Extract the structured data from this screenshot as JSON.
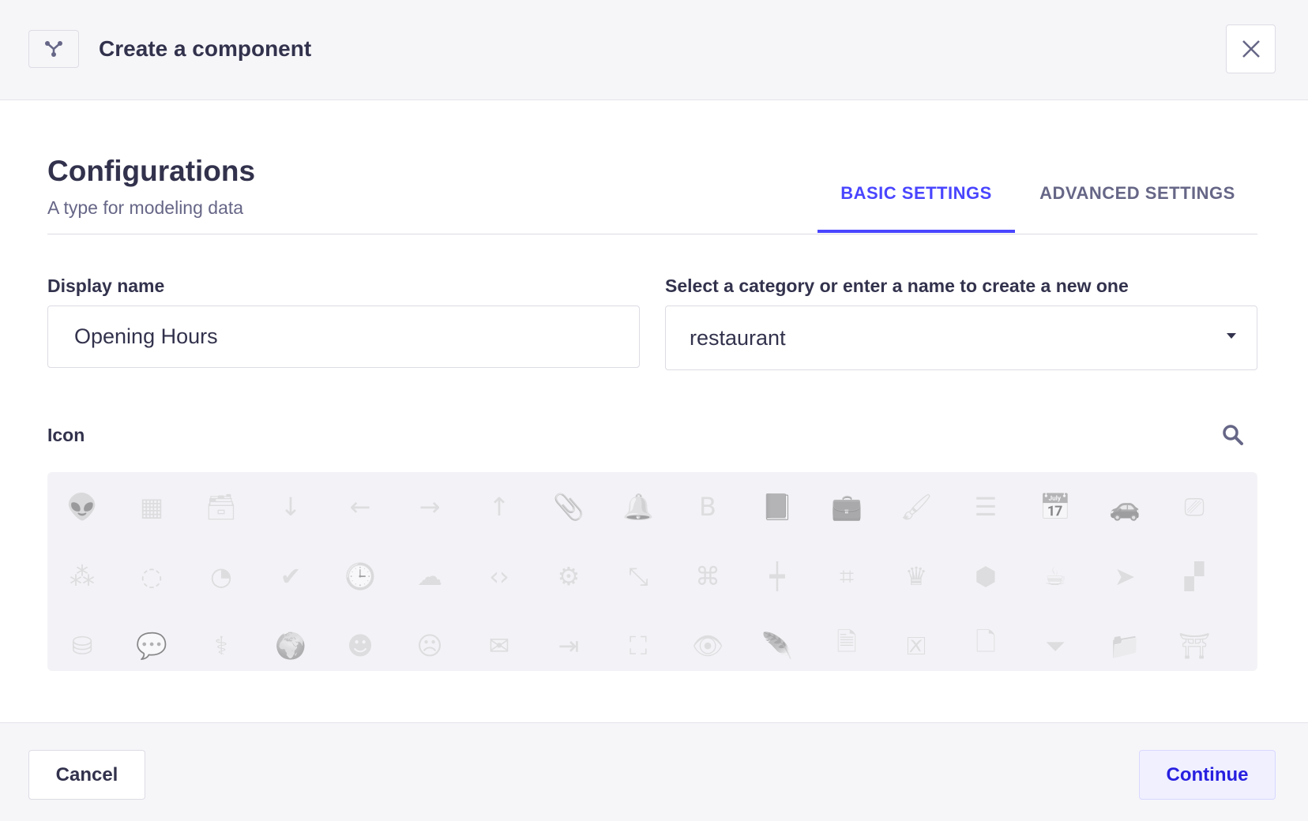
{
  "header": {
    "title": "Create a component",
    "logo_icon": "component-icon",
    "close_icon": "close-icon"
  },
  "section": {
    "title": "Configurations",
    "subtitle": "A type for modeling data"
  },
  "tabs": [
    {
      "label": "BASIC SETTINGS",
      "active": true
    },
    {
      "label": "ADVANCED SETTINGS",
      "active": false
    }
  ],
  "form": {
    "display_name": {
      "label": "Display name",
      "value": "Opening Hours"
    },
    "category": {
      "label": "Select a category or enter a name to create a new one",
      "value": "restaurant"
    },
    "icon": {
      "label": "Icon",
      "search_icon": "search-icon"
    }
  },
  "accent": "#4945ff",
  "icons": [
    {
      "name": "alien",
      "g": "👽"
    },
    {
      "name": "apps",
      "g": "▦"
    },
    {
      "name": "archive",
      "g": "🗃"
    },
    {
      "name": "arrow-down",
      "g": "↓"
    },
    {
      "name": "arrow-left",
      "g": "←"
    },
    {
      "name": "arrow-right",
      "g": "→"
    },
    {
      "name": "arrow-up",
      "g": "↑"
    },
    {
      "name": "paperclip",
      "g": "📎"
    },
    {
      "name": "bell",
      "g": "🔔"
    },
    {
      "name": "bold",
      "g": "B"
    },
    {
      "name": "book",
      "g": "📕"
    },
    {
      "name": "briefcase",
      "g": "💼"
    },
    {
      "name": "brush",
      "g": "🖌"
    },
    {
      "name": "bulleted-list",
      "g": "☰"
    },
    {
      "name": "calendar",
      "g": "📅"
    },
    {
      "name": "car",
      "g": "🚗"
    },
    {
      "name": "cast",
      "g": "⎚"
    },
    {
      "name": "chart-bubble",
      "g": "⁂"
    },
    {
      "name": "chart-circle",
      "g": "◌"
    },
    {
      "name": "chart-pie",
      "g": "◔"
    },
    {
      "name": "check",
      "g": "✔"
    },
    {
      "name": "clock",
      "g": "🕒"
    },
    {
      "name": "cloud",
      "g": "☁"
    },
    {
      "name": "code",
      "g": "‹›"
    },
    {
      "name": "cog",
      "g": "⚙"
    },
    {
      "name": "collapse",
      "g": "⤡"
    },
    {
      "name": "command",
      "g": "⌘"
    },
    {
      "name": "candlestick",
      "g": "┿"
    },
    {
      "name": "crop",
      "g": "⌗"
    },
    {
      "name": "crown",
      "g": "♛"
    },
    {
      "name": "cube",
      "g": "⬢"
    },
    {
      "name": "cup",
      "g": "☕"
    },
    {
      "name": "cursor",
      "g": "➤"
    },
    {
      "name": "dashboard",
      "g": "▞"
    },
    {
      "name": "database",
      "g": "⛁"
    },
    {
      "name": "discuss",
      "g": "💬"
    },
    {
      "name": "doctor",
      "g": "⚕"
    },
    {
      "name": "earth",
      "g": "🌍"
    },
    {
      "name": "emotion-happy",
      "g": "☻"
    },
    {
      "name": "emotion-unhappy",
      "g": "☹"
    },
    {
      "name": "envelope",
      "g": "✉"
    },
    {
      "name": "exit",
      "g": "⇥"
    },
    {
      "name": "expand",
      "g": "⛶"
    },
    {
      "name": "eye",
      "g": "👁"
    },
    {
      "name": "feather",
      "g": "🪶"
    },
    {
      "name": "file",
      "g": "🗎"
    },
    {
      "name": "file-error",
      "g": "🗵"
    },
    {
      "name": "file-pdf",
      "g": "🗋"
    },
    {
      "name": "filter",
      "g": "⏷"
    },
    {
      "name": "folder",
      "g": "📁"
    },
    {
      "name": "restaurant",
      "g": "⛩"
    }
  ],
  "footer": {
    "cancel": "Cancel",
    "continue": "Continue"
  }
}
